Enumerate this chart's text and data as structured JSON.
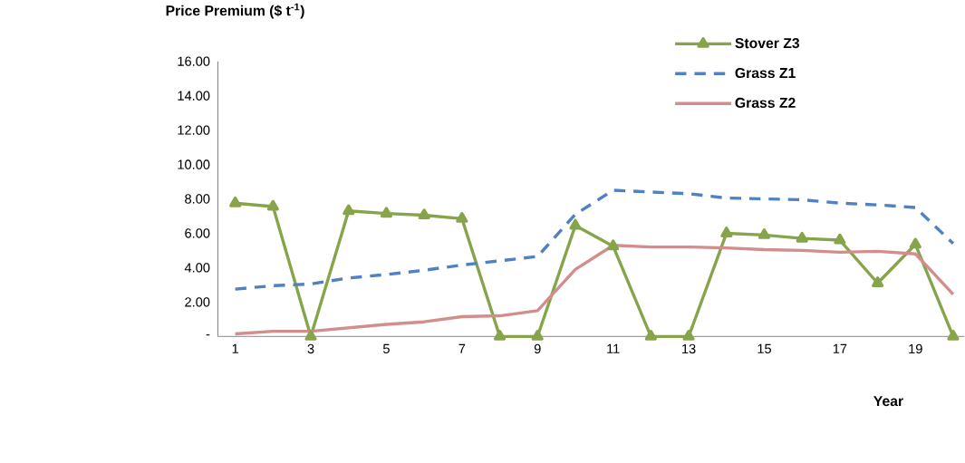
{
  "chart_data": {
    "type": "line",
    "ylabel": "Price Premium ($ t$^{-1}$)",
    "xlabel": "Year",
    "categories": [
      "1",
      null,
      "3",
      null,
      "5",
      null,
      "7",
      null,
      "9",
      null,
      "11",
      null,
      "13",
      null,
      "15",
      null,
      "17",
      null,
      "19",
      null
    ],
    "series": [
      {
        "name": "Stover Z3",
        "color": "#86a44a",
        "marker": "triangle",
        "line_style": "solid",
        "values": [
          7.75,
          7.55,
          0,
          7.3,
          7.15,
          7.05,
          6.85,
          0,
          0,
          6.45,
          5.25,
          0,
          0,
          6.0,
          5.9,
          5.7,
          5.6,
          3.1,
          5.35,
          0
        ]
      },
      {
        "name": "Grass Z1",
        "color": "#4f81c4",
        "marker": "none",
        "line_style": "dashed",
        "values": [
          2.75,
          2.95,
          3.05,
          3.4,
          3.6,
          3.85,
          4.15,
          4.4,
          4.65,
          7.1,
          8.5,
          8.4,
          8.3,
          8.05,
          8.0,
          7.95,
          7.75,
          7.65,
          7.5,
          5.4
        ]
      },
      {
        "name": "Grass Z2",
        "color": "#d38d8c",
        "marker": "none",
        "line_style": "solid",
        "values": [
          0.15,
          0.3,
          0.3,
          0.5,
          0.7,
          0.85,
          1.15,
          1.2,
          1.5,
          3.9,
          5.3,
          5.2,
          5.2,
          5.15,
          5.05,
          5.0,
          4.9,
          4.95,
          4.8,
          2.45
        ]
      }
    ],
    "ylim": [
      0,
      16
    ],
    "yticks": [
      {
        "value": 0,
        "label": "-"
      },
      {
        "value": 2,
        "label": "2.00"
      },
      {
        "value": 4,
        "label": "4.00"
      },
      {
        "value": 6,
        "label": "6.00"
      },
      {
        "value": 8,
        "label": "8.00"
      },
      {
        "value": 10,
        "label": "10.00"
      },
      {
        "value": 12,
        "label": "12.00"
      },
      {
        "value": 14,
        "label": "14.00"
      },
      {
        "value": 16,
        "label": "16.00"
      }
    ],
    "legend": "top right"
  }
}
